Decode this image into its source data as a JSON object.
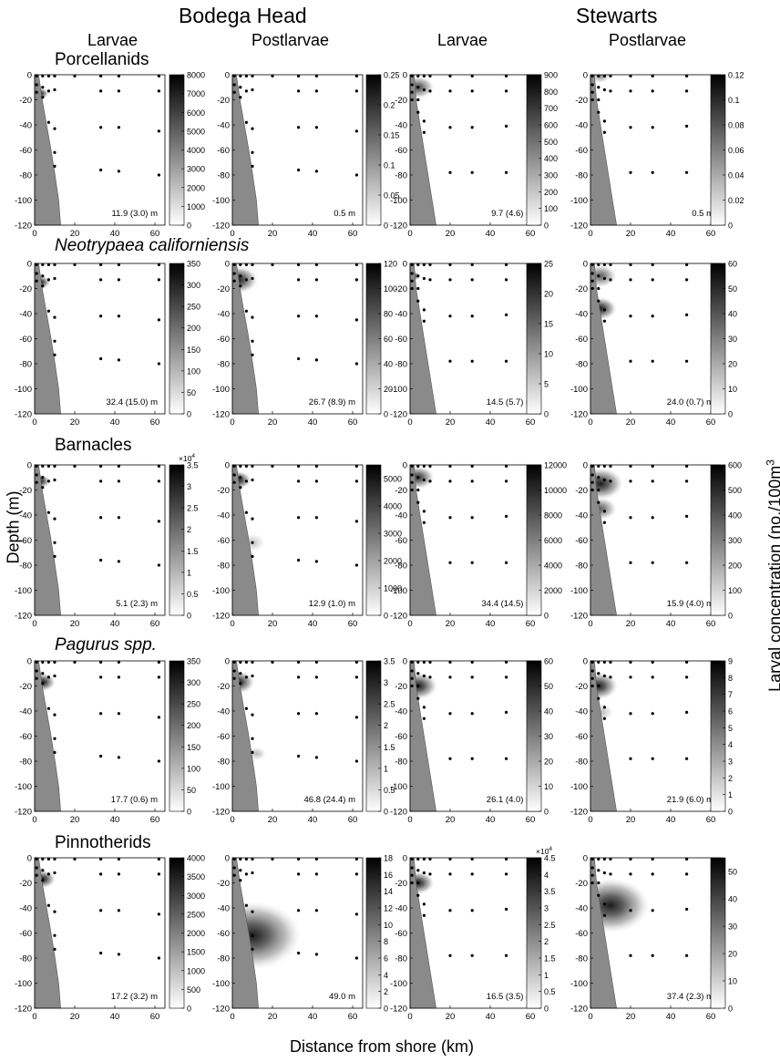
{
  "titles": {
    "site_left": "Bodega Head",
    "site_right": "Stewarts",
    "stage_1": "Larvae",
    "stage_2": "Postlarvae",
    "stage_3": "Larvae",
    "stage_4": "Postlarvae"
  },
  "axes": {
    "ylabel": "Depth (m)",
    "xlabel": "Distance from shore (km)",
    "colorbar_label": "Larval concentration (no./100m",
    "colorbar_label_sup": "3"
  },
  "chart_data": {
    "type": "heatmap",
    "xlim": [
      0,
      65
    ],
    "ylim": [
      -120,
      0
    ],
    "x_ticks": [
      0,
      20,
      40,
      60
    ],
    "y_ticks": [
      0,
      -20,
      -40,
      -60,
      -80,
      -100,
      -120
    ],
    "bottom_shading": "gray seafloor wedge near shore",
    "stations": {
      "bodega": [
        {
          "x": 1,
          "ys": [
            -1,
            -8,
            -14
          ]
        },
        {
          "x": 4,
          "ys": [
            -1,
            -10,
            -18
          ]
        },
        {
          "x": 7,
          "ys": [
            -1,
            -13,
            -38
          ]
        },
        {
          "x": 10,
          "ys": [
            -1,
            -12,
            -43,
            -62,
            -73
          ]
        },
        {
          "x": 20,
          "ys": [
            -1
          ]
        },
        {
          "x": 33,
          "ys": [
            -1,
            -13,
            -42,
            -76
          ]
        },
        {
          "x": 42,
          "ys": [
            -1,
            -13,
            -42,
            -77
          ]
        },
        {
          "x": 62,
          "ys": [
            -1,
            -13,
            -45,
            -80
          ]
        }
      ],
      "stewarts": [
        {
          "x": 1,
          "ys": [
            -1,
            -8,
            -14,
            -20
          ]
        },
        {
          "x": 4,
          "ys": [
            -1,
            -10,
            -20,
            -30
          ]
        },
        {
          "x": 7,
          "ys": [
            -1,
            -12,
            -37,
            -46
          ]
        },
        {
          "x": 10,
          "ys": [
            -1,
            -13
          ]
        },
        {
          "x": 20,
          "ys": [
            -1,
            -13,
            -42,
            -78
          ]
        },
        {
          "x": 31,
          "ys": [
            -1,
            -13,
            -42,
            -78
          ]
        },
        {
          "x": 48,
          "ys": [
            -1,
            -13,
            -41,
            -78
          ]
        }
      ]
    },
    "rows": [
      {
        "species": "Porcellanids",
        "italic": false,
        "panels": [
          {
            "site": "Bodega Head",
            "stage": "Larvae",
            "colorbar_ticks": [
              "0",
              "1000",
              "2000",
              "3000",
              "4000",
              "5000",
              "6000",
              "7000",
              "8000"
            ],
            "colorbar_max": 8000,
            "exponent": "",
            "mean_depth": "11.9 (3.0) m",
            "blobs": [
              {
                "x": 3,
                "y": -15,
                "r": 2.5,
                "intensity": 1.0
              }
            ]
          },
          {
            "site": "Bodega Head",
            "stage": "Postlarvae",
            "colorbar_ticks": [
              "0",
              "0.05",
              "0.1",
              "0.15",
              "0.2",
              "0.25"
            ],
            "colorbar_max": 0.25,
            "exponent": "",
            "mean_depth": "0.5 m",
            "blobs": []
          },
          {
            "site": "Stewarts",
            "stage": "Larvae",
            "colorbar_ticks": [
              "0",
              "100",
              "200",
              "300",
              "400",
              "500",
              "600",
              "700",
              "800",
              "900"
            ],
            "colorbar_max": 900,
            "exponent": "",
            "mean_depth": "9.7 (4.6) m",
            "blobs": [
              {
                "x": 4,
                "y": -10,
                "r": 5,
                "intensity": 0.8
              }
            ]
          },
          {
            "site": "Stewarts",
            "stage": "Postlarvae",
            "colorbar_ticks": [
              "0",
              "0.02",
              "0.04",
              "0.06",
              "0.08",
              "0.1",
              "0.12"
            ],
            "colorbar_max": 0.12,
            "exponent": "",
            "mean_depth": "0.5 m",
            "blobs": [
              {
                "x": 5,
                "y": -1,
                "r": 3,
                "intensity": 0.5
              }
            ]
          }
        ]
      },
      {
        "species": "Neotrypaea californiensis",
        "italic": true,
        "panels": [
          {
            "site": "Bodega Head",
            "stage": "Larvae",
            "colorbar_ticks": [
              "0",
              "50",
              "100",
              "150",
              "200",
              "250",
              "300",
              "350"
            ],
            "colorbar_max": 350,
            "exponent": "",
            "mean_depth": "32.4 (15.0) m",
            "blobs": [
              {
                "x": 3,
                "y": -15,
                "r": 3,
                "intensity": 1.0
              }
            ]
          },
          {
            "site": "Bodega Head",
            "stage": "Postlarvae",
            "colorbar_ticks": [
              "0",
              "20",
              "40",
              "60",
              "80",
              "100",
              "120"
            ],
            "colorbar_max": 120,
            "exponent": "",
            "mean_depth": "26.7 (8.9) m",
            "blobs": [
              {
                "x": 3,
                "y": -13,
                "r": 6,
                "intensity": 1.0
              }
            ]
          },
          {
            "site": "Stewarts",
            "stage": "Larvae",
            "colorbar_ticks": [
              "0",
              "5",
              "10",
              "15",
              "20",
              "25"
            ],
            "colorbar_max": 25,
            "exponent": "",
            "mean_depth": "14.5 (5.7) m",
            "blobs": [
              {
                "x": 2,
                "y": -10,
                "r": 2,
                "intensity": 0.9
              }
            ]
          },
          {
            "site": "Stewarts",
            "stage": "Postlarvae",
            "colorbar_ticks": [
              "0",
              "10",
              "20",
              "30",
              "40",
              "50",
              "60"
            ],
            "colorbar_max": 60,
            "exponent": "",
            "mean_depth": "24.0 (0.7) m",
            "blobs": [
              {
                "x": 5,
                "y": -10,
                "r": 5,
                "intensity": 0.7
              },
              {
                "x": 5,
                "y": -36,
                "r": 5,
                "intensity": 1.0
              }
            ]
          }
        ]
      },
      {
        "species": "Barnacles",
        "italic": false,
        "panels": [
          {
            "site": "Bodega Head",
            "stage": "Larvae",
            "colorbar_ticks": [
              "0",
              "0.5",
              "1",
              "1.5",
              "2",
              "2.5",
              "3",
              "3.5"
            ],
            "colorbar_max": 3.5,
            "exponent": "×10",
            "exponent_sup": "4",
            "mean_depth": "5.1 (2.3) m",
            "blobs": [
              {
                "x": 3,
                "y": -13,
                "r": 3,
                "intensity": 1.0
              }
            ]
          },
          {
            "site": "Bodega Head",
            "stage": "Postlarvae",
            "colorbar_ticks": [
              "0",
              "1000",
              "2000",
              "3000",
              "4000",
              "5000"
            ],
            "colorbar_max": 5500,
            "exponent": "",
            "mean_depth": "12.9 (1.0) m",
            "blobs": [
              {
                "x": 3,
                "y": -12,
                "r": 4,
                "intensity": 1.0
              },
              {
                "x": 10,
                "y": -62,
                "r": 4,
                "intensity": 0.25
              }
            ]
          },
          {
            "site": "Stewarts",
            "stage": "Larvae",
            "colorbar_ticks": [
              "0",
              "2000",
              "4000",
              "6000",
              "8000",
              "10000",
              "12000"
            ],
            "colorbar_max": 12000,
            "exponent": "",
            "mean_depth": "34.4 (14.5) m",
            "blobs": [
              {
                "x": 4,
                "y": -10,
                "r": 5,
                "intensity": 0.9
              }
            ]
          },
          {
            "site": "Stewarts",
            "stage": "Postlarvae",
            "colorbar_ticks": [
              "0",
              "100",
              "200",
              "300",
              "400",
              "500",
              "600"
            ],
            "colorbar_max": 600,
            "exponent": "",
            "mean_depth": "15.9 (4.0) m",
            "blobs": [
              {
                "x": 5,
                "y": -15,
                "r": 7,
                "intensity": 1.0
              },
              {
                "x": 5,
                "y": -35,
                "r": 5,
                "intensity": 0.7
              }
            ]
          }
        ]
      },
      {
        "species": "Pagurus spp.",
        "italic": true,
        "panels": [
          {
            "site": "Bodega Head",
            "stage": "Larvae",
            "colorbar_ticks": [
              "0",
              "50",
              "100",
              "150",
              "200",
              "250",
              "300",
              "350"
            ],
            "colorbar_max": 350,
            "exponent": "",
            "mean_depth": "17.7 (0.6) m",
            "blobs": [
              {
                "x": 4,
                "y": -17,
                "r": 4,
                "intensity": 1.0
              }
            ]
          },
          {
            "site": "Bodega Head",
            "stage": "Postlarvae",
            "colorbar_ticks": [
              "0",
              "0.5",
              "1",
              "1.5",
              "2",
              "2.5",
              "3",
              "3.5"
            ],
            "colorbar_max": 3.5,
            "exponent": "",
            "mean_depth": "46.8 (24.4) m",
            "blobs": [
              {
                "x": 3,
                "y": -17,
                "r": 5,
                "intensity": 1.0
              },
              {
                "x": 12,
                "y": -74,
                "r": 3,
                "intensity": 0.3
              }
            ]
          },
          {
            "site": "Stewarts",
            "stage": "Larvae",
            "colorbar_ticks": [
              "0",
              "10",
              "20",
              "30",
              "40",
              "50",
              "60"
            ],
            "colorbar_max": 60,
            "exponent": "",
            "mean_depth": "26.1 (4.0) m",
            "blobs": [
              {
                "x": 4,
                "y": -20,
                "r": 6,
                "intensity": 1.0
              }
            ]
          },
          {
            "site": "Stewarts",
            "stage": "Postlarvae",
            "colorbar_ticks": [
              "0",
              "1",
              "2",
              "3",
              "4",
              "5",
              "6",
              "7",
              "8",
              "9"
            ],
            "colorbar_max": 9,
            "exponent": "",
            "mean_depth": "21.9 (6.0) m",
            "blobs": [
              {
                "x": 4,
                "y": -20,
                "r": 6,
                "intensity": 1.0
              },
              {
                "x": 5,
                "y": -41,
                "r": 4,
                "intensity": 0.3
              }
            ]
          }
        ]
      },
      {
        "species": "Pinnotherids",
        "italic": false,
        "panels": [
          {
            "site": "Bodega Head",
            "stage": "Larvae",
            "colorbar_ticks": [
              "0",
              "500",
              "1000",
              "1500",
              "2000",
              "2500",
              "3000",
              "3500",
              "4000"
            ],
            "colorbar_max": 4000,
            "exponent": "",
            "mean_depth": "17.2 (3.2) m",
            "blobs": [
              {
                "x": 4,
                "y": -17,
                "r": 4,
                "intensity": 1.0
              }
            ]
          },
          {
            "site": "Bodega Head",
            "stage": "Postlarvae",
            "colorbar_ticks": [
              "0",
              "2",
              "4",
              "6",
              "8",
              "10",
              "12",
              "14",
              "16",
              "18"
            ],
            "colorbar_max": 18,
            "exponent": "",
            "mean_depth": "49.0 m",
            "blobs": [
              {
                "x": 10,
                "y": -62,
                "r": 15,
                "intensity": 1.0
              }
            ]
          },
          {
            "site": "Stewarts",
            "stage": "Larvae",
            "colorbar_ticks": [
              "0",
              "0.5",
              "1",
              "1.5",
              "2",
              "2.5",
              "3",
              "3.5",
              "4",
              "4.5"
            ],
            "colorbar_max": 4.5,
            "exponent": "×10",
            "exponent_sup": "4",
            "mean_depth": "16.5 (3.5) m",
            "blobs": [
              {
                "x": 4,
                "y": -20,
                "r": 5,
                "intensity": 1.0
              }
            ]
          },
          {
            "site": "Stewarts",
            "stage": "Postlarvae",
            "colorbar_ticks": [
              "0",
              "10",
              "20",
              "30",
              "40",
              "50"
            ],
            "colorbar_max": 55,
            "exponent": "",
            "mean_depth": "37.4 (2.3) m",
            "blobs": [
              {
                "x": 10,
                "y": -38,
                "r": 12,
                "intensity": 1.0
              }
            ]
          }
        ]
      }
    ]
  }
}
